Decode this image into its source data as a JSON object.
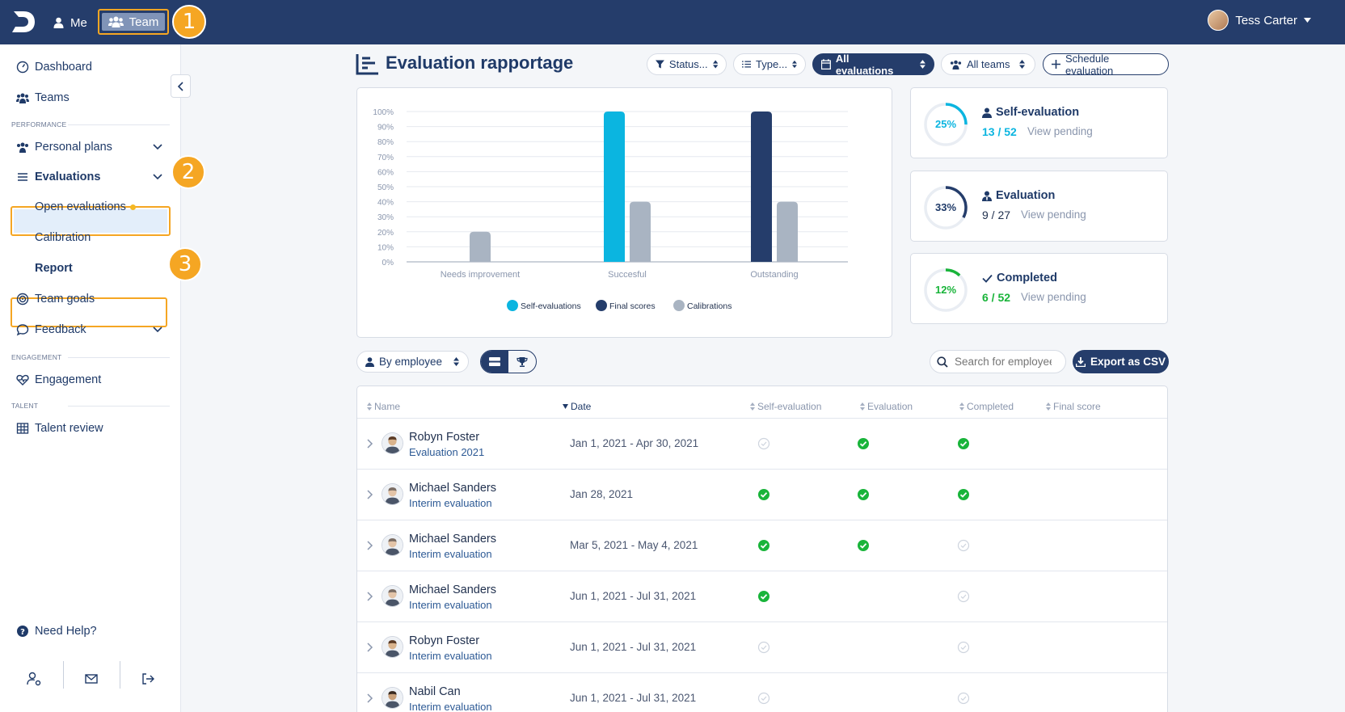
{
  "topbar": {
    "me_label": "Me",
    "team_label": "Team",
    "user_name": "Tess Carter",
    "callouts": [
      "1",
      "2",
      "3"
    ]
  },
  "sidebar": {
    "dashboard": "Dashboard",
    "teams": "Teams",
    "section_performance": "PERFORMANCE",
    "personal_plans": "Personal plans",
    "evaluations": "Evaluations",
    "open_evaluations": "Open evaluations",
    "calibration": "Calibration",
    "report": "Report",
    "team_goals": "Team goals",
    "feedback": "Feedback",
    "section_engagement": "ENGAGEMENT",
    "engagement": "Engagement",
    "section_talent": "TALENT",
    "talent_review": "Talent review",
    "need_help": "Need Help?"
  },
  "header": {
    "title": "Evaluation rapportage",
    "filters": {
      "status": "Status...",
      "type": "Type...",
      "all_evaluations": "All evaluations",
      "all_teams": "All teams",
      "schedule": "Schedule evaluation"
    }
  },
  "chart_data": {
    "type": "bar",
    "categories": [
      "Needs improvement",
      "Succesful",
      "Outstanding"
    ],
    "series": [
      {
        "name": "Self-evaluations",
        "color": "#0bb5e0",
        "values": [
          0,
          100,
          0
        ]
      },
      {
        "name": "Final scores",
        "color": "#253d6b",
        "values": [
          0,
          0,
          100
        ]
      },
      {
        "name": "Calibrations",
        "color": "#a9b4c2",
        "values": [
          20,
          40,
          40
        ]
      }
    ],
    "y_ticks": [
      "0%",
      "10%",
      "20%",
      "30%",
      "40%",
      "50%",
      "60%",
      "70%",
      "80%",
      "90%",
      "100%"
    ],
    "ylim": [
      0,
      100
    ],
    "grid": true,
    "legend_position": "bottom"
  },
  "stats": [
    {
      "title": "Self-evaluation",
      "percent": "25%",
      "value": 25,
      "count": "13 / 52",
      "link": "View pending",
      "color": "#0bb5e0",
      "icon": "user-icon"
    },
    {
      "title": "Evaluation",
      "percent": "33%",
      "value": 33,
      "count": "9 / 27",
      "link": "View pending",
      "color": "#253d6b",
      "icon": "user-tie-icon"
    },
    {
      "title": "Completed",
      "percent": "12%",
      "value": 12,
      "count": "6 / 52",
      "link": "View pending",
      "color": "#19b43a",
      "icon": "check-icon"
    }
  ],
  "toolbar": {
    "group_by": "By employee",
    "search_placeholder": "Search for employee",
    "export_label": "Export as CSV"
  },
  "table": {
    "columns": {
      "name": "Name",
      "date": "Date",
      "self_evaluation": "Self-evaluation",
      "evaluation": "Evaluation",
      "completed": "Completed",
      "final_score": "Final score"
    },
    "rows": [
      {
        "name": "Robyn Foster",
        "sub": "Evaluation 2021",
        "date": "Jan 1, 2021 - Apr 30, 2021",
        "self": "pending",
        "eval": "done",
        "completed": "done"
      },
      {
        "name": "Michael Sanders",
        "sub": "Interim evaluation",
        "date": "Jan 28, 2021",
        "self": "done",
        "eval": "done",
        "completed": "done"
      },
      {
        "name": "Michael Sanders",
        "sub": "Interim evaluation",
        "date": "Mar 5, 2021 - May 4, 2021",
        "self": "done",
        "eval": "done",
        "completed": "pending"
      },
      {
        "name": "Michael Sanders",
        "sub": "Interim evaluation",
        "date": "Jun 1, 2021 - Jul 31, 2021",
        "self": "done",
        "eval": "none",
        "completed": "pending"
      },
      {
        "name": "Robyn Foster",
        "sub": "Interim evaluation",
        "date": "Jun 1, 2021 - Jul 31, 2021",
        "self": "pending",
        "eval": "none",
        "completed": "pending"
      },
      {
        "name": "Nabil Can",
        "sub": "Interim evaluation",
        "date": "Jun 1, 2021 - Jul 31, 2021",
        "self": "pending",
        "eval": "none",
        "completed": "pending"
      }
    ]
  }
}
